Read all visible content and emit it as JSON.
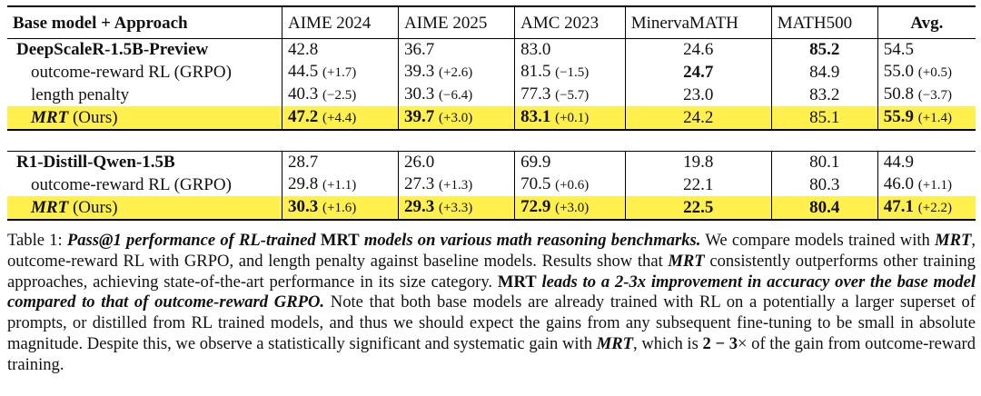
{
  "table": {
    "headers": [
      "Base model + Approach",
      "AIME 2024",
      "AIME 2025",
      "AMC 2023",
      "MinervaMATH",
      "MATH500",
      "Avg."
    ],
    "groups": [
      {
        "base": {
          "name": "DeepScaleR-1.5B-Preview",
          "values": [
            "42.8",
            "36.7",
            "83.0",
            "24.6",
            "85.2",
            "54.5"
          ]
        },
        "rows": [
          {
            "name": "outcome-reward RL (GRPO)",
            "values": [
              "44.5",
              "39.3",
              "81.5",
              "24.7",
              "84.9",
              "55.0"
            ],
            "deltas": [
              "(+1.7)",
              "(+2.6)",
              "(−1.5)",
              "",
              "",
              "(+0.5)"
            ]
          },
          {
            "name": "length penalty",
            "values": [
              "40.3",
              "30.3",
              "77.3",
              "23.0",
              "83.2",
              "50.8"
            ],
            "deltas": [
              "(−2.5)",
              "(−6.4)",
              "(−5.7)",
              "",
              "",
              "(−3.7)"
            ]
          },
          {
            "name": "MRT",
            "suffix": "(Ours)",
            "values": [
              "47.2",
              "39.7",
              "83.1",
              "24.2",
              "85.1",
              "55.9"
            ],
            "deltas": [
              "(+4.4)",
              "(+3.0)",
              "(+0.1)",
              "",
              "",
              "(+1.4)"
            ]
          }
        ]
      },
      {
        "base": {
          "name": "R1-Distill-Qwen-1.5B",
          "values": [
            "28.7",
            "26.0",
            "69.9",
            "19.8",
            "80.1",
            "44.9"
          ]
        },
        "rows": [
          {
            "name": "outcome-reward RL (GRPO)",
            "values": [
              "29.8",
              "27.3",
              "70.5",
              "22.1",
              "80.3",
              "46.0"
            ],
            "deltas": [
              "(+1.1)",
              "(+1.3)",
              "(+0.6)",
              "",
              "",
              "(+1.1)"
            ]
          },
          {
            "name": "MRT",
            "suffix": "(Ours)",
            "values": [
              "30.3",
              "29.3",
              "72.9",
              "22.5",
              "80.4",
              "47.1"
            ],
            "deltas": [
              "(+1.6)",
              "(+3.3)",
              "(+3.0)",
              "",
              "",
              "(+2.2)"
            ]
          }
        ]
      }
    ]
  },
  "caption": {
    "label": "Table 1:",
    "p1": "Pass@1 performance of RL-trained",
    "p2": "MRT",
    "p3": "models on various math reasoning benchmarks.",
    "p4": "We compare models trained with",
    "p5": "MRT",
    "p6": ", outcome-reward RL with GRPO, and length penalty against baseline models. Results show that",
    "p7": "MRT",
    "p8": "consistently outperforms other training approaches, achieving state-of-the-art performance in its size category.",
    "p9": "MRT",
    "p10": "leads to a 2-3x improvement in accuracy over the base model compared to that of outcome-reward GRPO.",
    "p11": "Note that both base models are already trained with RL on a potentially a larger superset of prompts, or distilled from RL trained models, and thus we should expect the gains from any subsequent fine-tuning to be small in absolute magnitude. Despite this, we observe a statistically significant and systematic gain with",
    "p12": "MRT",
    "p13": ", which is",
    "p14": "2 − 3",
    "p15": "× of the gain from outcome-reward training."
  }
}
